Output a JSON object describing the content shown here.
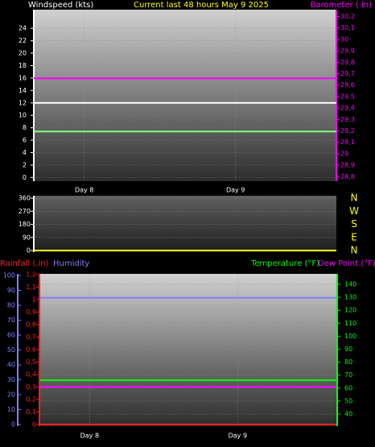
{
  "chart_data": [
    {
      "type": "line",
      "title": "Current last 48 hours May 9 2025",
      "title_color": "#ffff00",
      "ylabel": "Windspeed (kts)",
      "y2label": "Barometer (.in)",
      "y_color": "#ffffff",
      "y2_color": "#ff00ff",
      "xlim": [
        0,
        48
      ],
      "xticks": [
        {
          "value": 8,
          "label": "Day 8"
        },
        {
          "value": 32,
          "label": "Day 9"
        }
      ],
      "ylim": [
        -0.6,
        27
      ],
      "yticks": [
        0,
        2,
        4,
        6,
        8,
        10,
        12,
        14,
        16,
        18,
        20,
        22,
        24
      ],
      "y2lim": [
        28.76,
        30.26
      ],
      "y2ticks": [
        {
          "value": 28.8,
          "label": "28,8"
        },
        {
          "value": 28.9,
          "label": "28,9"
        },
        29,
        {
          "value": 29.1,
          "label": "29,1"
        },
        {
          "value": 29.2,
          "label": "29,2"
        },
        {
          "value": 29.3,
          "label": "29,3"
        },
        {
          "value": 29.4,
          "label": "29,4"
        },
        {
          "value": 29.5,
          "label": "29,5"
        },
        {
          "value": 29.6,
          "label": "29,6"
        },
        {
          "value": 29.7,
          "label": "29,7"
        },
        {
          "value": 29.8,
          "label": "29,8"
        },
        {
          "value": 29.9,
          "label": "29,9"
        },
        30,
        {
          "value": 30.1,
          "label": "30,1"
        },
        {
          "value": 30.2,
          "label": "30,2"
        }
      ],
      "grid": true,
      "series": [
        {
          "color": "#ffffff",
          "x": [
            0,
            48
          ],
          "values": [
            12,
            12
          ]
        },
        {
          "color": "#80ff80",
          "x": [
            0,
            48
          ],
          "values": [
            7.4,
            7.4
          ]
        },
        {
          "color": "#ff00ff",
          "axis": "y2",
          "x": [
            0,
            48
          ],
          "values": [
            29.66,
            29.66
          ]
        }
      ]
    },
    {
      "type": "line",
      "y_color": "#ffffff",
      "y2_color": "#ffff00",
      "xlim": [
        0,
        48
      ],
      "ylim": [
        -11,
        377
      ],
      "yticks": [
        0,
        90,
        180,
        270,
        360
      ],
      "y2lim": [
        -11,
        377
      ],
      "y2ticks": [
        {
          "value": 360,
          "label": "N"
        },
        {
          "value": 270,
          "label": "W"
        },
        {
          "value": 180,
          "label": "S"
        },
        {
          "value": 90,
          "label": "E"
        },
        {
          "value": 0,
          "label": "N"
        }
      ],
      "grid": true,
      "series": [
        {
          "color": "#ffff00",
          "x": [
            0,
            48
          ],
          "values": [
            0,
            0
          ]
        }
      ]
    },
    {
      "type": "line",
      "y_color": "#ff2020",
      "y2_color": "#00ff00",
      "y3_color": "#8080ff",
      "xlim": [
        0,
        48
      ],
      "xticks": [
        {
          "value": 8,
          "label": "Day 8"
        },
        {
          "value": 32,
          "label": "Day 9"
        }
      ],
      "ylim": [
        -0.013,
        1.206
      ],
      "yticks": [
        0,
        {
          "value": 0.1,
          "label": "0,1"
        },
        {
          "value": 0.2,
          "label": "0,2"
        },
        {
          "value": 0.3,
          "label": "0,3"
        },
        {
          "value": 0.4,
          "label": "0,4"
        },
        {
          "value": 0.5,
          "label": "0,5"
        },
        {
          "value": 0.6,
          "label": "0,6"
        },
        {
          "value": 0.7,
          "label": "0,7"
        },
        {
          "value": 0.8,
          "label": "0,8"
        },
        {
          "value": 0.9,
          "label": "0,9"
        },
        1,
        {
          "value": 1.1,
          "label": "1,1"
        },
        {
          "value": 1.2,
          "label": "1,2"
        }
      ],
      "y2lim": [
        30.7,
        148.1
      ],
      "y2ticks": [
        40,
        50,
        60,
        70,
        80,
        90,
        100,
        110,
        120,
        130,
        140
      ],
      "y3lim": [
        -1.1,
        101.1
      ],
      "y3ticks": [
        0,
        10,
        20,
        30,
        40,
        50,
        60,
        70,
        80,
        90,
        100
      ],
      "grid": true,
      "series": [
        {
          "name": "Rainfall (.in)",
          "color": "#ff2020",
          "x": [
            0,
            48
          ],
          "values": [
            0,
            0
          ]
        },
        {
          "name": "Humidity",
          "color": "#8080ff",
          "axis": "y3",
          "x": [
            0,
            48
          ],
          "values": [
            85,
            85
          ]
        },
        {
          "name": "Temperature (°F)",
          "color": "#00ff00",
          "axis": "y2",
          "x": [
            0,
            48
          ],
          "values": [
            66,
            66
          ]
        },
        {
          "name": "Dew Point (°F)",
          "color": "#ff00ff",
          "axis": "y2",
          "x": [
            0,
            48
          ],
          "values": [
            61,
            61
          ]
        }
      ]
    }
  ]
}
